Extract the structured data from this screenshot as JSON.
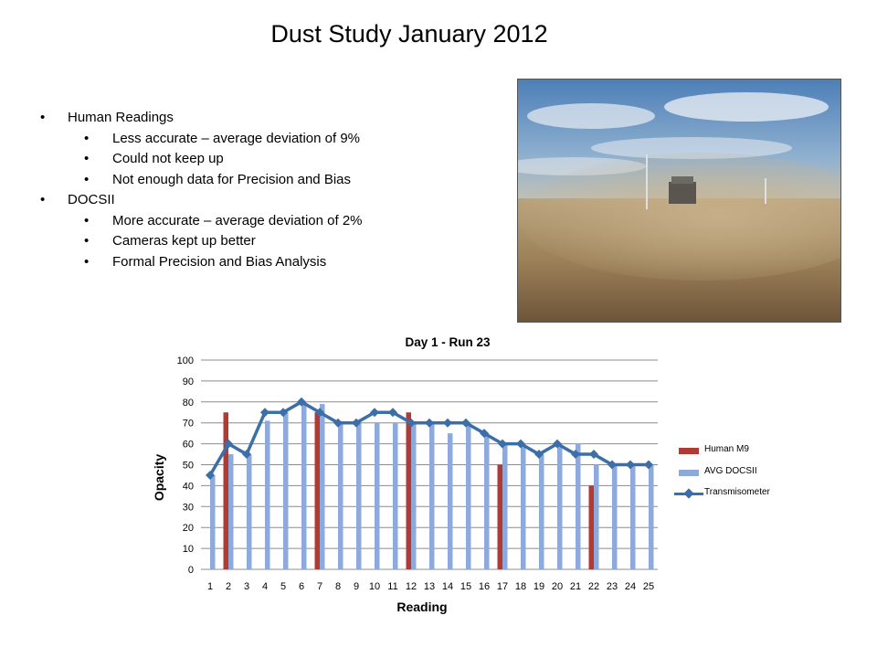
{
  "slide": {
    "title": "Dust Study January 2012",
    "bullets": [
      {
        "label": "Human Readings",
        "sub": [
          "Less accurate – average deviation of 9%",
          "Could not keep up",
          "Not enough data for Precision and Bias"
        ]
      },
      {
        "label": "DOCSII",
        "sub": [
          "More accurate – average deviation of 2%",
          "Cameras kept up better",
          "Formal Precision and Bias Analysis"
        ]
      }
    ]
  },
  "chart_data": {
    "type": "bar",
    "title": "Day 1 - Run 23",
    "xlabel": "Reading",
    "ylabel": "Opacity",
    "ylim": [
      0,
      100
    ],
    "yticks": [
      0,
      10,
      20,
      30,
      40,
      50,
      60,
      70,
      80,
      90,
      100
    ],
    "categories": [
      "1",
      "2",
      "3",
      "4",
      "5",
      "6",
      "7",
      "8",
      "9",
      "10",
      "11",
      "12",
      "13",
      "14",
      "15",
      "16",
      "17",
      "18",
      "19",
      "20",
      "21",
      "22",
      "23",
      "24",
      "25"
    ],
    "grid": true,
    "legend": "right",
    "series": [
      {
        "name": "Human M9",
        "kind": "bar",
        "color": "#b23a35",
        "values": [
          null,
          75,
          null,
          null,
          null,
          null,
          75,
          null,
          null,
          null,
          null,
          75,
          null,
          null,
          null,
          null,
          50,
          null,
          null,
          null,
          null,
          40,
          null,
          null,
          null
        ]
      },
      {
        "name": "AVG DOCSII",
        "kind": "bar",
        "color": "#8eaadb",
        "values": [
          45,
          55,
          55,
          71,
          75,
          80,
          79,
          70,
          70,
          70,
          70,
          70,
          70,
          65,
          70,
          65,
          60,
          60,
          55,
          60,
          60,
          50,
          50,
          50,
          50
        ]
      },
      {
        "name": "Transmisometer",
        "kind": "line",
        "color": "#3c6ea8",
        "values": [
          45,
          60,
          55,
          75,
          75,
          80,
          75,
          70,
          70,
          75,
          75,
          70,
          70,
          70,
          70,
          65,
          60,
          60,
          55,
          60,
          55,
          55,
          50,
          50,
          50
        ]
      }
    ]
  }
}
